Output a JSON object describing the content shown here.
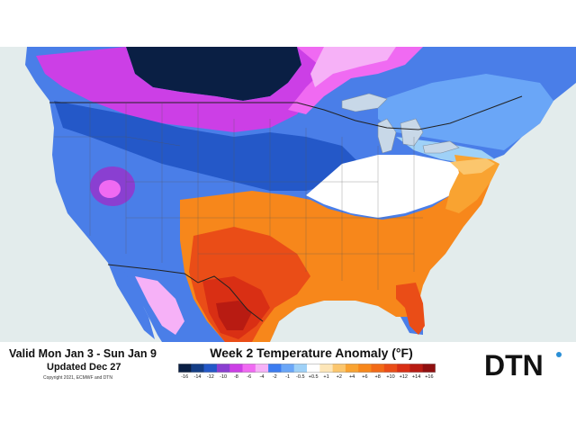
{
  "footer": {
    "valid_text": "Valid Mon Jan 3 - Sun Jan 9",
    "updated_text": "Updated Dec 27",
    "copyright": "Copyright 2021, ECMWF and DTN",
    "title": "Week 2 Temperature Anomaly (°F)"
  },
  "legend": {
    "items": [
      {
        "label": "-16",
        "color": "#0a1f44"
      },
      {
        "label": "-14",
        "color": "#143e86"
      },
      {
        "label": "-12",
        "color": "#2458c8"
      },
      {
        "label": "-10",
        "color": "#8a3fd1"
      },
      {
        "label": "-8",
        "color": "#cc3fe6"
      },
      {
        "label": "-6",
        "color": "#f06af2"
      },
      {
        "label": "-4",
        "color": "#f6b1f7"
      },
      {
        "label": "-2",
        "color": "#3c7cf0"
      },
      {
        "label": "-1",
        "color": "#6aa6f7"
      },
      {
        "label": "-0.5",
        "color": "#9fd1f7"
      },
      {
        "label": "+0.5",
        "color": "#ffffff"
      },
      {
        "label": "+1",
        "color": "#fde6b8"
      },
      {
        "label": "+2",
        "color": "#fbc66d"
      },
      {
        "label": "+4",
        "color": "#f9a331"
      },
      {
        "label": "+6",
        "color": "#f7871b"
      },
      {
        "label": "+8",
        "color": "#f26a17"
      },
      {
        "label": "+10",
        "color": "#ea4d17"
      },
      {
        "label": "+12",
        "color": "#d92f14"
      },
      {
        "label": "+14",
        "color": "#b81b12"
      },
      {
        "label": "+16",
        "color": "#8f0f0f"
      }
    ]
  },
  "brand": {
    "logo_text": "DTN",
    "logo_color": "#111111",
    "accent_color": "#2a8fd6"
  }
}
